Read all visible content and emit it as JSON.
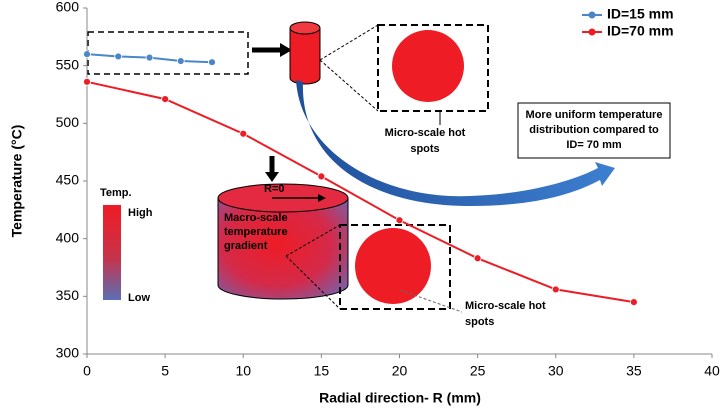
{
  "chart_data": {
    "type": "line",
    "x_label": "Radial direction- R (mm)",
    "y_label": "Temperature (°C)",
    "xlim": [
      0,
      40
    ],
    "xticks": [
      0,
      5,
      10,
      15,
      20,
      25,
      30,
      35,
      40
    ],
    "ylim": [
      300,
      600
    ],
    "yticks": [
      300,
      350,
      400,
      450,
      500,
      550,
      600
    ],
    "legend": "upper right",
    "grid": false,
    "series": [
      {
        "name": "ID=15 mm",
        "color": "#4a86c8",
        "x": [
          0,
          2,
          4,
          6,
          8
        ],
        "values": [
          560,
          558,
          557,
          554,
          553
        ]
      },
      {
        "name": "ID=70 mm",
        "color": "#ee1c25",
        "x": [
          0,
          5,
          10,
          15,
          20,
          25,
          30,
          35
        ],
        "values": [
          536,
          521,
          491,
          454,
          416,
          383,
          356,
          345
        ]
      }
    ],
    "annotations": {
      "box_text": [
        "More uniform temperature",
        "distribution compared to",
        "ID= 70 mm"
      ],
      "hot_spots_top": [
        "Micro-scale hot",
        "spots"
      ],
      "hot_spots_bottom": [
        "Micro-scale hot",
        "spots"
      ],
      "temp_label": "Temp.",
      "high": "High",
      "low": "Low",
      "r0": "R=0",
      "macro": [
        "Macro-scale",
        "temperature",
        "gradient"
      ]
    }
  }
}
